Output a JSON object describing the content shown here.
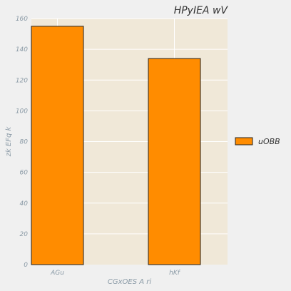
{
  "chart_data": {
    "type": "bar",
    "title": "HPyIEA wV",
    "xlabel": "CGxOES  A ri",
    "ylabel": "zk EFq k",
    "categories": [
      "AGu",
      "hKf"
    ],
    "series": [
      {
        "name": "uOBB",
        "values": [
          155,
          134
        ],
        "color": "#ff8c00"
      }
    ],
    "ylim": [
      0,
      160
    ],
    "yticks": [
      0,
      20,
      40,
      60,
      80,
      100,
      120,
      140,
      160
    ],
    "grid": true,
    "legend_position": "right",
    "plot_background": "#f0e8d8",
    "bar_edge_color": "#222222"
  }
}
